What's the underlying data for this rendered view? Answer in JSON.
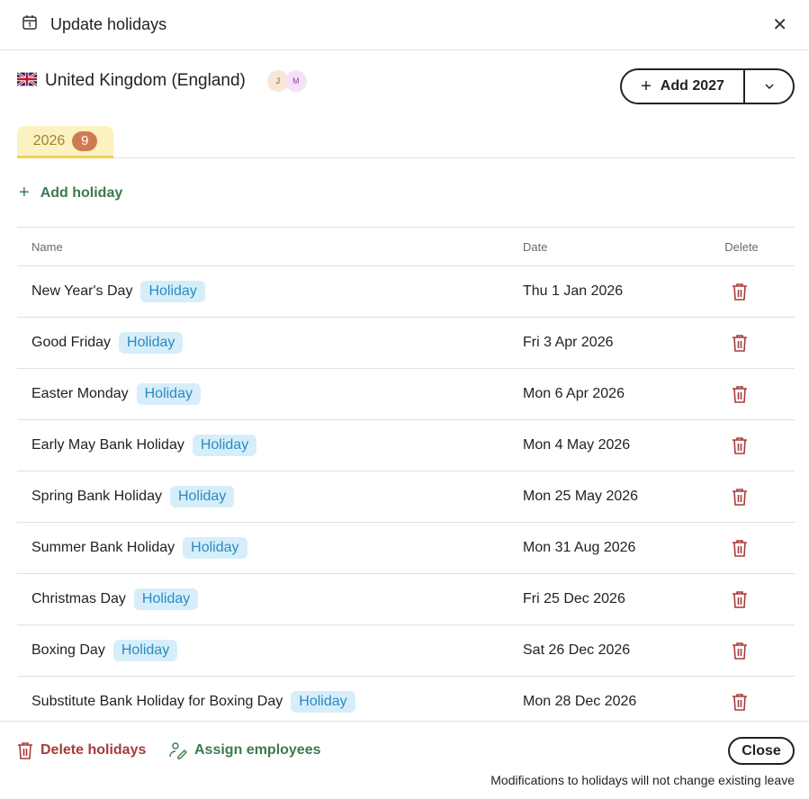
{
  "header": {
    "title": "Update holidays",
    "icon": "calendar-icon",
    "close_icon": "close-icon"
  },
  "country": {
    "name": "United Kingdom (England)",
    "flag": "uk-flag-icon",
    "avatars": [
      "J",
      "M"
    ]
  },
  "add_year": {
    "label": "Add 2027",
    "plus": "+",
    "dropdown_icon": "chevron-down-icon"
  },
  "tabs": [
    {
      "label": "2026",
      "count": "9",
      "active": true
    }
  ],
  "add_holiday": {
    "label": "Add holiday",
    "plus": "+"
  },
  "table": {
    "headers": {
      "name": "Name",
      "date": "Date",
      "delete": "Delete"
    },
    "rows": [
      {
        "name": "New Year's Day",
        "tag": "Holiday",
        "date": "Thu 1 Jan 2026"
      },
      {
        "name": "Good Friday",
        "tag": "Holiday",
        "date": "Fri 3 Apr 2026"
      },
      {
        "name": "Easter Monday",
        "tag": "Holiday",
        "date": "Mon 6 Apr 2026"
      },
      {
        "name": "Early May Bank Holiday",
        "tag": "Holiday",
        "date": "Mon 4 May 2026"
      },
      {
        "name": "Spring Bank Holiday",
        "tag": "Holiday",
        "date": "Mon 25 May 2026"
      },
      {
        "name": "Summer Bank Holiday",
        "tag": "Holiday",
        "date": "Mon 31 Aug 2026"
      },
      {
        "name": "Christmas Day",
        "tag": "Holiday",
        "date": "Fri 25 Dec 2026"
      },
      {
        "name": "Boxing Day",
        "tag": "Holiday",
        "date": "Sat 26 Dec 2026"
      },
      {
        "name": "Substitute Bank Holiday for Boxing Day",
        "tag": "Holiday",
        "date": "Mon 28 Dec 2026"
      }
    ]
  },
  "footer": {
    "delete_label": "Delete holidays",
    "assign_label": "Assign employees",
    "close_label": "Close",
    "note": "Modifications to holidays will not change existing leave"
  },
  "colors": {
    "danger": "#a83a3a",
    "success": "#3d7a4e",
    "tag_bg": "#d6eef9",
    "tag_text": "#2a8bc2",
    "tab_bg": "#fbf1c1",
    "badge": "#cf7b52"
  }
}
